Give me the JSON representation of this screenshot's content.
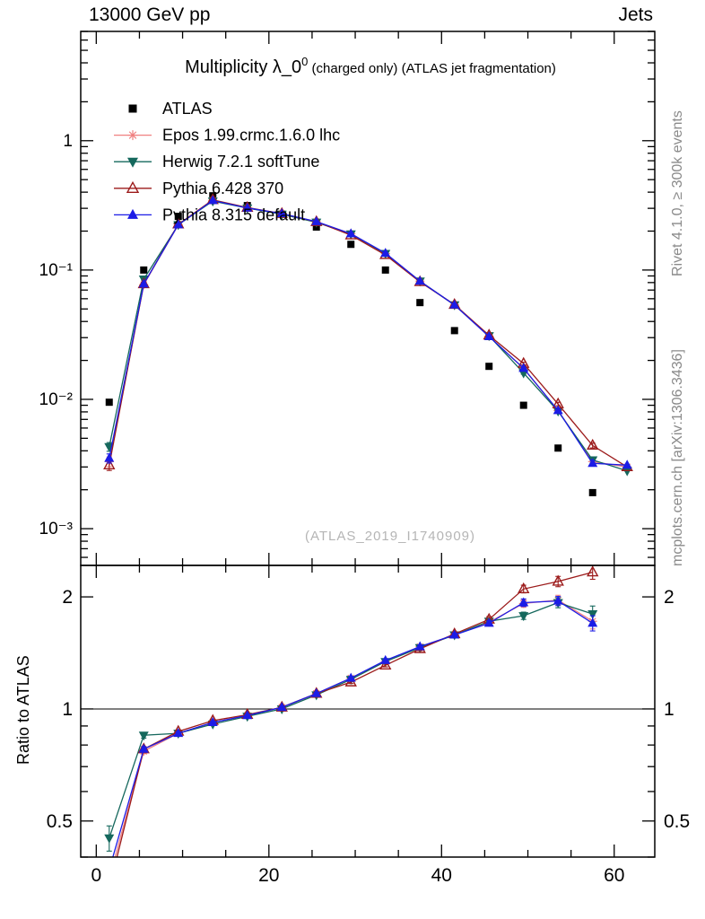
{
  "header": {
    "left": "13000 GeV pp",
    "right": "Jets"
  },
  "annotations": {
    "rivet": "Rivet 4.1.0, ≥ 300k events",
    "mcplots": "mcplots.cern.ch [arXiv:1306.3436]",
    "watermark": "(ATLAS_2019_I1740909)"
  },
  "chart_data": {
    "type": "line",
    "title": "Multiplicity λ_0⁰ (charged only) (ATLAS jet fragmentation)",
    "title_parts": {
      "main": "Multiplicity λ_0",
      "sup": "0",
      "suffix": " (charged only) (ATLAS jet fragmentation)"
    },
    "ratio_label": "Ratio to ATLAS",
    "xlim": [
      -1.8,
      64.7
    ],
    "main_ylim": [
      0.00052,
      7
    ],
    "ratio_ylim": [
      0.4,
      2.43
    ],
    "main_y_log": true,
    "ratio_y_log": true,
    "grid": false,
    "legend_position": "top-left-inside",
    "ratio_ref_line": 1,
    "x_ticks": [
      {
        "v": 0,
        "label": "0"
      },
      {
        "v": 20,
        "label": "20"
      },
      {
        "v": 40,
        "label": "40"
      },
      {
        "v": 60,
        "label": "60"
      }
    ],
    "x_minor_step": 5,
    "main_y_ticks": [
      {
        "v": 1,
        "label": "1"
      },
      {
        "v": 0.1,
        "label": "10⁻¹"
      },
      {
        "v": 0.01,
        "label": "10⁻²"
      },
      {
        "v": 0.001,
        "label": "10⁻³"
      }
    ],
    "ratio_y_ticks": [
      {
        "v": 2,
        "label": "2"
      },
      {
        "v": 1,
        "label": "1"
      },
      {
        "v": 0.5,
        "label": "0.5"
      }
    ],
    "x": [
      1.5,
      5.5,
      9.5,
      13.5,
      17.5,
      21.5,
      25.5,
      29.5,
      33.5,
      37.5,
      41.5,
      45.5,
      49.5,
      53.5,
      57.5,
      61.5
    ],
    "series": [
      {
        "id": "atlas",
        "name": "ATLAS",
        "color": "#000000",
        "marker": "square-filled",
        "line": false,
        "values": [
          0.0095,
          0.1,
          0.26,
          0.375,
          0.315,
          0.27,
          0.215,
          0.158,
          0.1,
          0.056,
          0.034,
          0.018,
          0.009,
          0.0042,
          0.0019,
          null
        ],
        "ratio": null,
        "ratio_err": null
      },
      {
        "id": "epos",
        "name": "Epos 1.99.crmc.1.6.0 lhc",
        "color": "#f08080",
        "marker": "star-open",
        "line": true,
        "values": [
          0.0033,
          0.077,
          0.224,
          0.345,
          0.302,
          0.273,
          0.236,
          0.191,
          0.134,
          0.082,
          0.0537,
          0.0308,
          0.0173,
          0.0082,
          0.0033,
          0.003
        ],
        "ratio": [
          0.35,
          0.77,
          0.86,
          0.92,
          0.96,
          1.01,
          1.1,
          1.21,
          1.34,
          1.47,
          1.58,
          1.71,
          1.92,
          1.96,
          1.72,
          null
        ],
        "ratio_err": [
          0.03,
          0.012,
          0.008,
          0.006,
          0.006,
          0.006,
          0.008,
          0.01,
          0.013,
          0.016,
          0.02,
          0.028,
          0.045,
          0.06,
          0.08,
          null
        ]
      },
      {
        "id": "herwig",
        "name": "Herwig 7.2.1 softTune",
        "color": "#15685d",
        "marker": "triangle-down-filled",
        "line": true,
        "values": [
          0.0043,
          0.085,
          0.224,
          0.341,
          0.301,
          0.27,
          0.234,
          0.19,
          0.134,
          0.082,
          0.0537,
          0.031,
          0.016,
          0.0081,
          0.0034,
          0.0028
        ],
        "ratio": [
          0.45,
          0.85,
          0.86,
          0.91,
          0.955,
          1.0,
          1.09,
          1.2,
          1.34,
          1.46,
          1.58,
          1.72,
          1.78,
          1.93,
          1.8,
          null
        ],
        "ratio_err": [
          0.035,
          0.015,
          0.008,
          0.006,
          0.006,
          0.006,
          0.008,
          0.01,
          0.013,
          0.016,
          0.021,
          0.03,
          0.04,
          0.06,
          0.09,
          null
        ]
      },
      {
        "id": "pythia6",
        "name": "Pythia 6.428 370",
        "color": "#9c1b1b",
        "marker": "triangle-up-open",
        "line": true,
        "values": [
          0.0031,
          0.078,
          0.226,
          0.349,
          0.304,
          0.273,
          0.236,
          0.186,
          0.131,
          0.081,
          0.054,
          0.0313,
          0.0189,
          0.0092,
          0.0044,
          0.003
        ],
        "ratio": [
          0.33,
          0.78,
          0.87,
          0.93,
          0.965,
          1.01,
          1.1,
          1.18,
          1.31,
          1.45,
          1.59,
          1.74,
          2.1,
          2.2,
          2.33,
          null
        ],
        "ratio_err": [
          0.03,
          0.012,
          0.008,
          0.006,
          0.006,
          0.006,
          0.008,
          0.01,
          0.013,
          0.016,
          0.021,
          0.03,
          0.05,
          0.07,
          0.1,
          null
        ]
      },
      {
        "id": "pythia8",
        "name": "Pythia 8.315 default",
        "color": "#1c1ce6",
        "marker": "triangle-up-filled",
        "line": true,
        "values": [
          0.0035,
          0.078,
          0.224,
          0.345,
          0.302,
          0.273,
          0.237,
          0.191,
          0.135,
          0.082,
          0.0537,
          0.0306,
          0.0174,
          0.0082,
          0.0032,
          0.0031
        ],
        "ratio": [
          0.37,
          0.78,
          0.86,
          0.92,
          0.96,
          1.01,
          1.1,
          1.21,
          1.35,
          1.47,
          1.58,
          1.7,
          1.93,
          1.95,
          1.7,
          null
        ],
        "ratio_err": [
          0.03,
          0.012,
          0.008,
          0.006,
          0.006,
          0.006,
          0.008,
          0.01,
          0.013,
          0.016,
          0.02,
          0.028,
          0.045,
          0.055,
          0.08,
          null
        ]
      }
    ]
  }
}
